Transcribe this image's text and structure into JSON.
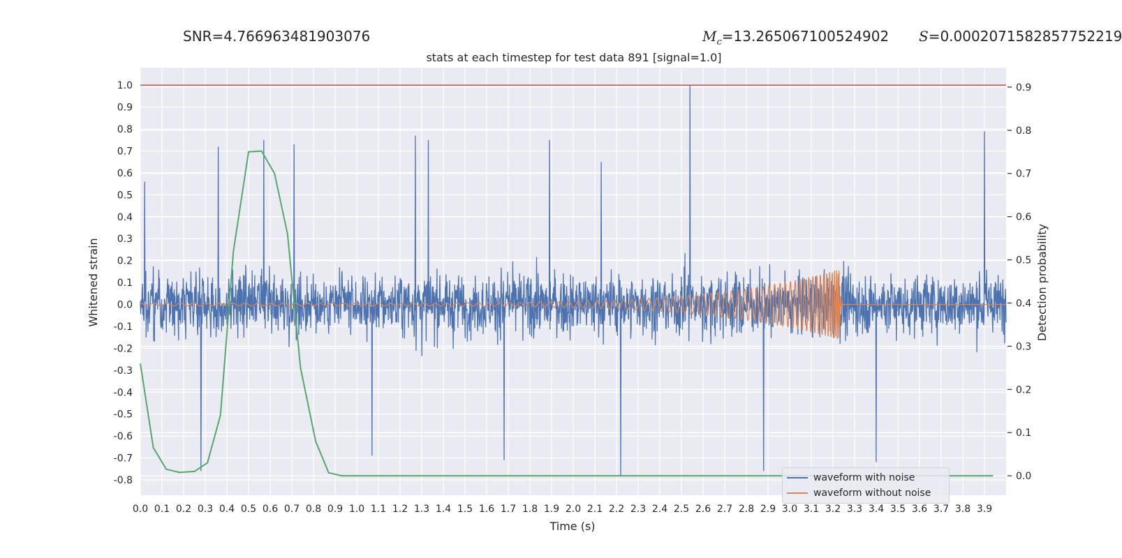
{
  "header": {
    "snr_text": "SNR=4.766963481903076",
    "mc_symbol": "M",
    "mc_sub": "c",
    "mc_value": "=13.265067100524902",
    "s_symbol": "S",
    "s_value": "=0.0002071582857752219"
  },
  "colors": {
    "background": "#eaeaf2",
    "grid": "#ffffff",
    "noise": "#4c72b0",
    "clean": "#dd8452",
    "probability": "#55a868",
    "threshold": "#c44e52"
  },
  "chart_data": {
    "type": "line",
    "title": "stats at each timestep for test data 891 [signal=1.0]",
    "xlabel": "Time (s)",
    "ylabel": "Whitened strain",
    "y2label": "Detection probability",
    "xlim": [
      0.0,
      4.0
    ],
    "ylim": [
      -0.87,
      1.08
    ],
    "y2lim": [
      -0.045,
      0.945
    ],
    "xticks": [
      "0.0",
      "0.1",
      "0.2",
      "0.3",
      "0.4",
      "0.5",
      "0.6",
      "0.7",
      "0.8",
      "0.9",
      "1.0",
      "1.1",
      "1.2",
      "1.3",
      "1.4",
      "1.5",
      "1.6",
      "1.7",
      "1.8",
      "1.9",
      "2.0",
      "2.1",
      "2.2",
      "2.3",
      "2.4",
      "2.5",
      "2.6",
      "2.7",
      "2.8",
      "2.9",
      "3.0",
      "3.1",
      "3.2",
      "3.3",
      "3.4",
      "3.5",
      "3.6",
      "3.7",
      "3.8",
      "3.9"
    ],
    "yticks": [
      "-0.8",
      "-0.7",
      "-0.6",
      "-0.5",
      "-0.4",
      "-0.3",
      "-0.2",
      "-0.1",
      "0.0",
      "0.1",
      "0.2",
      "0.3",
      "0.4",
      "0.5",
      "0.6",
      "0.7",
      "0.8",
      "0.9",
      "1.0"
    ],
    "y2ticks": [
      "0.0",
      "0.1",
      "0.2",
      "0.3",
      "0.4",
      "0.5",
      "0.6",
      "0.7",
      "0.8",
      "0.9"
    ],
    "grid": true,
    "legend_position": "lower-right",
    "threshold": {
      "y": 1.0
    },
    "series": [
      {
        "name": "waveform with noise",
        "kind": "noise-envelope",
        "samples": 4096,
        "typical_amplitude": 0.3,
        "peaks": [
          [
            0.02,
            0.56
          ],
          [
            0.28,
            -0.76
          ],
          [
            0.36,
            0.72
          ],
          [
            0.57,
            0.75
          ],
          [
            0.71,
            0.73
          ],
          [
            1.07,
            -0.69
          ],
          [
            1.27,
            0.77
          ],
          [
            1.33,
            0.75
          ],
          [
            1.68,
            -0.71
          ],
          [
            1.89,
            0.75
          ],
          [
            2.13,
            0.65
          ],
          [
            2.22,
            -0.78
          ],
          [
            2.54,
            1.0
          ],
          [
            2.88,
            -0.76
          ],
          [
            3.4,
            -0.72
          ],
          [
            3.9,
            0.79
          ]
        ]
      },
      {
        "name": "waveform without noise",
        "kind": "chirp",
        "t_merge": 3.23,
        "amplitude_start": 0.006,
        "amplitude_end": 0.16
      },
      {
        "name": "",
        "axis": "right",
        "x": [
          0.0,
          0.06,
          0.12,
          0.18,
          0.25,
          0.31,
          0.37,
          0.43,
          0.5,
          0.56,
          0.62,
          0.68,
          0.74,
          0.81,
          0.87,
          0.93,
          0.99,
          1.5,
          2.0,
          2.5,
          3.0,
          3.5,
          3.94
        ],
        "y": [
          0.26,
          0.065,
          0.015,
          0.008,
          0.01,
          0.03,
          0.14,
          0.52,
          0.75,
          0.752,
          0.7,
          0.56,
          0.25,
          0.08,
          0.007,
          0.0,
          0.0,
          0.0,
          0.0,
          0.0,
          0.0,
          0.0,
          0.0
        ]
      }
    ]
  }
}
